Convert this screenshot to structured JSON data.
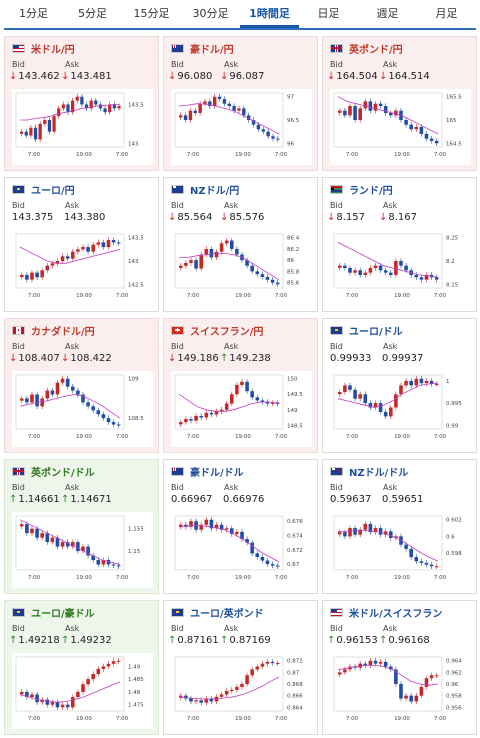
{
  "tabs": [
    {
      "label": "1分足",
      "active": false
    },
    {
      "label": "5分足",
      "active": false
    },
    {
      "label": "15分足",
      "active": false
    },
    {
      "label": "30分足",
      "active": false
    },
    {
      "label": "1時間足",
      "active": true
    },
    {
      "label": "日足",
      "active": false
    },
    {
      "label": "週足",
      "active": false
    },
    {
      "label": "月足",
      "active": false
    }
  ],
  "labels": {
    "bid": "Bid",
    "ask": "Ask"
  },
  "arrows": {
    "down": "↓",
    "up": "↑"
  },
  "cards": [
    {
      "pair": "米ドル/円",
      "theme": "red",
      "flag": "us",
      "bid": "143.462",
      "ask": "143.481",
      "bid_dir": "down",
      "ask_dir": "down",
      "chart": {
        "yticks": [
          "143.5",
          "143"
        ],
        "xticks": [
          "7:00",
          "19:00",
          "7:00"
        ],
        "close": [
          143.15,
          143.1,
          143.2,
          143.05,
          143.25,
          143.3,
          143.15,
          143.35,
          143.45,
          143.5,
          143.4,
          143.55,
          143.6,
          143.5,
          143.45,
          143.55,
          143.5,
          143.45,
          143.4,
          143.5,
          143.45,
          143.48
        ],
        "sma": [
          143.3,
          143.3,
          143.32,
          143.33,
          143.35,
          143.38,
          143.4,
          143.42,
          143.45,
          143.46,
          143.48,
          143.49,
          143.5,
          143.5
        ]
      }
    },
    {
      "pair": "豪ドル/円",
      "theme": "red",
      "flag": "au",
      "bid": "96.080",
      "ask": "96.087",
      "bid_dir": "down",
      "ask_dir": "down",
      "chart": {
        "yticks": [
          "97",
          "96.5",
          "96"
        ],
        "xticks": [
          "7:00",
          "19:00",
          "7:00"
        ],
        "close": [
          96.6,
          96.5,
          96.7,
          96.65,
          96.85,
          96.9,
          96.8,
          97.0,
          96.95,
          96.85,
          96.8,
          96.7,
          96.75,
          96.6,
          96.5,
          96.4,
          96.3,
          96.25,
          96.15,
          96.1,
          96.08
        ],
        "sma": [
          96.8,
          96.82,
          96.85,
          96.84,
          96.8,
          96.75,
          96.7,
          96.6,
          96.5,
          96.4,
          96.3,
          96.2
        ]
      }
    },
    {
      "pair": "英ポンド/円",
      "theme": "red",
      "flag": "gb",
      "bid": "164.504",
      "ask": "164.514",
      "bid_dir": "down",
      "ask_dir": "down",
      "chart": {
        "yticks": [
          "165.5",
          "165",
          "164.5"
        ],
        "xticks": [
          "7:00",
          "19:00",
          "7:00"
        ],
        "close": [
          165.2,
          165.1,
          165.3,
          165.0,
          165.25,
          165.4,
          165.2,
          165.35,
          165.3,
          165.15,
          165.1,
          165.2,
          165.0,
          164.9,
          164.8,
          164.85,
          164.7,
          164.6,
          164.55,
          164.5
        ],
        "sma": [
          165.5,
          165.4,
          165.35,
          165.3,
          165.25,
          165.2,
          165.15,
          165.1,
          165.0,
          164.9,
          164.8,
          164.7
        ]
      }
    },
    {
      "pair": "ユーロ/円",
      "theme": "white",
      "flag": "eu",
      "bid": "143.375",
      "ask": "143.380",
      "bid_dir": "none",
      "ask_dir": "none",
      "chart": {
        "yticks": [
          "143.5",
          "143",
          "142.5"
        ],
        "xticks": [
          "7:00",
          "19:00",
          "7:00"
        ],
        "close": [
          142.7,
          142.6,
          142.75,
          142.65,
          142.8,
          142.9,
          142.95,
          143.0,
          143.1,
          143.05,
          143.2,
          143.25,
          143.3,
          143.2,
          143.35,
          143.4,
          143.3,
          143.45,
          143.4,
          143.38
        ],
        "sma": [
          143.3,
          143.2,
          143.1,
          143.0,
          142.95,
          142.95,
          143.0,
          143.05,
          143.1,
          143.15,
          143.2,
          143.25
        ]
      }
    },
    {
      "pair": "NZドル/円",
      "theme": "white",
      "flag": "nz",
      "bid": "85.564",
      "ask": "85.576",
      "bid_dir": "down",
      "ask_dir": "down",
      "chart": {
        "yticks": [
          "86.4",
          "86.2",
          "86",
          "85.8",
          "85.6"
        ],
        "xticks": [
          "7:00",
          "19:00",
          "7:00"
        ],
        "close": [
          85.9,
          85.95,
          86.0,
          85.85,
          86.1,
          86.2,
          86.05,
          86.15,
          86.3,
          86.35,
          86.2,
          86.1,
          86.0,
          85.9,
          85.8,
          85.75,
          85.7,
          85.65,
          85.6,
          85.57
        ],
        "sma": [
          86.05,
          86.05,
          86.08,
          86.1,
          86.12,
          86.12,
          86.1,
          86.05,
          85.95,
          85.85,
          85.75,
          85.65
        ]
      }
    },
    {
      "pair": "ランド/円",
      "theme": "white",
      "flag": "za",
      "bid": "8.157",
      "ask": "8.167",
      "bid_dir": "down",
      "ask_dir": "down",
      "chart": {
        "yticks": [
          "8.25",
          "8.2",
          "8.15"
        ],
        "xticks": [
          "7:00",
          "19:00",
          "7:00"
        ],
        "close": [
          8.19,
          8.185,
          8.175,
          8.18,
          8.17,
          8.175,
          8.185,
          8.19,
          8.18,
          8.175,
          8.17,
          8.2,
          8.19,
          8.18,
          8.17,
          8.165,
          8.16,
          8.17,
          8.165,
          8.16
        ],
        "sma": [
          8.24,
          8.23,
          8.22,
          8.21,
          8.2,
          8.19,
          8.185,
          8.18,
          8.175,
          8.17,
          8.168,
          8.165
        ]
      }
    },
    {
      "pair": "カナダドル/円",
      "theme": "red",
      "flag": "ca",
      "bid": "108.407",
      "ask": "108.422",
      "bid_dir": "down",
      "ask_dir": "down",
      "chart": {
        "yticks": [
          "109",
          "108.5"
        ],
        "xticks": [
          "7:00",
          "19:00",
          "7:00"
        ],
        "close": [
          108.75,
          108.7,
          108.8,
          108.65,
          108.75,
          108.85,
          108.8,
          108.95,
          109.0,
          108.9,
          108.85,
          108.8,
          108.7,
          108.65,
          108.6,
          108.55,
          108.5,
          108.45,
          108.42,
          108.41
        ],
        "sma": [
          108.65,
          108.68,
          108.7,
          108.72,
          108.75,
          108.78,
          108.8,
          108.78,
          108.72,
          108.66,
          108.58,
          108.5
        ]
      }
    },
    {
      "pair": "スイスフラン/円",
      "theme": "red",
      "flag": "ch",
      "bid": "149.186",
      "ask": "149.238",
      "bid_dir": "down",
      "ask_dir": "up",
      "chart": {
        "yticks": [
          "150",
          "149.5",
          "149",
          "148.5"
        ],
        "xticks": [
          "7:00",
          "19:00",
          "7:00"
        ],
        "close": [
          148.6,
          148.7,
          148.65,
          148.8,
          148.75,
          148.9,
          148.85,
          148.95,
          149.0,
          149.2,
          149.5,
          149.8,
          149.9,
          149.6,
          149.4,
          149.3,
          149.25,
          149.2,
          149.22,
          149.2
        ],
        "sma": [
          149.5,
          149.3,
          149.1,
          149.0,
          148.95,
          148.95,
          149.0,
          149.1,
          149.2,
          149.25,
          149.25,
          149.22
        ]
      }
    },
    {
      "pair": "ユーロ/ドル",
      "theme": "white",
      "flag": "eu-us",
      "bid": "0.99933",
      "ask": "0.99937",
      "bid_dir": "none",
      "ask_dir": "none",
      "chart": {
        "yticks": [
          "1",
          "0.995",
          "0.99"
        ],
        "xticks": [
          "7:00",
          "19:00",
          "7:00"
        ],
        "close": [
          0.9975,
          0.999,
          0.998,
          0.996,
          0.997,
          0.995,
          0.994,
          0.995,
          0.993,
          0.992,
          0.994,
          0.997,
          0.999,
          1.0,
          0.999,
          1.0005,
          0.9995,
          1.0,
          0.9993,
          0.9993
        ],
        "sma": [
          0.996,
          0.9955,
          0.995,
          0.9945,
          0.994,
          0.9945,
          0.9955,
          0.997,
          0.998,
          0.999,
          0.9993,
          0.9995
        ]
      }
    },
    {
      "pair": "英ポンド/ドル",
      "theme": "green",
      "flag": "gb-us",
      "bid": "1.14661",
      "ask": "1.14671",
      "bid_dir": "up",
      "ask_dir": "up",
      "chart": {
        "yticks": [
          "1.155",
          "1.15"
        ],
        "xticks": [
          "7:00",
          "19:00",
          "7:00"
        ],
        "close": [
          1.156,
          1.154,
          1.155,
          1.153,
          1.154,
          1.152,
          1.153,
          1.151,
          1.152,
          1.151,
          1.152,
          1.15,
          1.151,
          1.149,
          1.148,
          1.147,
          1.148,
          1.147,
          1.1468,
          1.1466
        ],
        "sma": [
          1.157,
          1.156,
          1.155,
          1.154,
          1.153,
          1.152,
          1.151,
          1.15,
          1.149,
          1.148,
          1.1475,
          1.147
        ]
      }
    },
    {
      "pair": "豪ドル/ドル",
      "theme": "white",
      "flag": "au-us",
      "bid": "0.66967",
      "ask": "0.66976",
      "bid_dir": "none",
      "ask_dir": "none",
      "chart": {
        "yticks": [
          "0.676",
          "0.674",
          "0.672",
          "0.67"
        ],
        "xticks": [
          "7:00",
          "19:00",
          "7:00"
        ],
        "close": [
          0.6755,
          0.6752,
          0.676,
          0.6748,
          0.6755,
          0.6762,
          0.675,
          0.6755,
          0.6748,
          0.675,
          0.6742,
          0.6745,
          0.6735,
          0.673,
          0.6715,
          0.671,
          0.6705,
          0.67,
          0.6698,
          0.6697
        ],
        "sma": [
          0.6752,
          0.6753,
          0.6754,
          0.6753,
          0.6751,
          0.6748,
          0.6742,
          0.6735,
          0.6726,
          0.6717,
          0.671,
          0.6703
        ]
      }
    },
    {
      "pair": "NZドル/ドル",
      "theme": "white",
      "flag": "nz-us",
      "bid": "0.59637",
      "ask": "0.59651",
      "bid_dir": "none",
      "ask_dir": "none",
      "chart": {
        "yticks": [
          "0.602",
          "0.6",
          "0.598"
        ],
        "xticks": [
          "7:00",
          "19:00",
          "7:00"
        ],
        "close": [
          0.6005,
          0.6,
          0.601,
          0.6002,
          0.6008,
          0.6015,
          0.6005,
          0.601,
          0.6002,
          0.6006,
          0.5998,
          0.6,
          0.599,
          0.5985,
          0.5975,
          0.597,
          0.5968,
          0.5966,
          0.5964,
          0.5964
        ],
        "sma": [
          0.6006,
          0.6006,
          0.6007,
          0.6007,
          0.6006,
          0.6004,
          0.6,
          0.5995,
          0.5988,
          0.5981,
          0.5975,
          0.597
        ]
      }
    },
    {
      "pair": "ユーロ/豪ドル",
      "theme": "green",
      "flag": "eu-au",
      "bid": "1.49218",
      "ask": "1.49232",
      "bid_dir": "up",
      "ask_dir": "up",
      "chart": {
        "yticks": [
          "1.49",
          "1.485",
          "1.48",
          "1.475"
        ],
        "xticks": [
          "7:00",
          "19:00",
          "7:00"
        ],
        "close": [
          1.48,
          1.478,
          1.479,
          1.476,
          1.477,
          1.475,
          1.476,
          1.474,
          1.475,
          1.474,
          1.478,
          1.48,
          1.483,
          1.485,
          1.487,
          1.489,
          1.49,
          1.491,
          1.492,
          1.4922
        ],
        "sma": [
          1.479,
          1.478,
          1.477,
          1.4765,
          1.476,
          1.4762,
          1.477,
          1.478,
          1.4795,
          1.481,
          1.4825,
          1.484
        ]
      }
    },
    {
      "pair": "ユーロ/英ポンド",
      "theme": "white",
      "flag": "eu-gb",
      "bid": "0.87161",
      "ask": "0.87169",
      "bid_dir": "up",
      "ask_dir": "up",
      "chart": {
        "yticks": [
          "0.872",
          "0.87",
          "0.868",
          "0.866",
          "0.864"
        ],
        "xticks": [
          "7:00",
          "19:00",
          "7:00"
        ],
        "close": [
          0.866,
          0.8655,
          0.865,
          0.8652,
          0.8648,
          0.8655,
          0.865,
          0.8658,
          0.8662,
          0.8668,
          0.867,
          0.8675,
          0.868,
          0.8695,
          0.8705,
          0.871,
          0.8715,
          0.8718,
          0.8716,
          0.8716
        ],
        "sma": [
          0.8658,
          0.8656,
          0.8655,
          0.8654,
          0.8655,
          0.8656,
          0.8658,
          0.8662,
          0.8668,
          0.8675,
          0.8684,
          0.8692
        ]
      }
    },
    {
      "pair": "米ドル/スイスフラン",
      "theme": "white",
      "flag": "us-ch",
      "bid": "0.96153",
      "ask": "0.96168",
      "bid_dir": "up",
      "ask_dir": "up",
      "chart": {
        "yticks": [
          "0.964",
          "0.962",
          "0.96",
          "0.958",
          "0.956"
        ],
        "xticks": [
          "7:00",
          "19:00",
          "7:00"
        ],
        "close": [
          0.962,
          0.9625,
          0.963,
          0.9628,
          0.9635,
          0.9632,
          0.964,
          0.9635,
          0.9638,
          0.963,
          0.9625,
          0.96,
          0.9575,
          0.958,
          0.957,
          0.958,
          0.9595,
          0.961,
          0.9615,
          0.9615
        ],
        "sma": [
          0.9625,
          0.9627,
          0.963,
          0.9632,
          0.9632,
          0.963,
          0.9625,
          0.9615,
          0.9605,
          0.96,
          0.9598,
          0.96
        ]
      }
    }
  ],
  "colors": {
    "up_candle": "#c62828",
    "down_candle": "#1e4ea8",
    "sma": "#c03cc0",
    "axis": "#888888",
    "down_arrow": "#dd2222",
    "up_arrow": "#2b8a2b"
  }
}
